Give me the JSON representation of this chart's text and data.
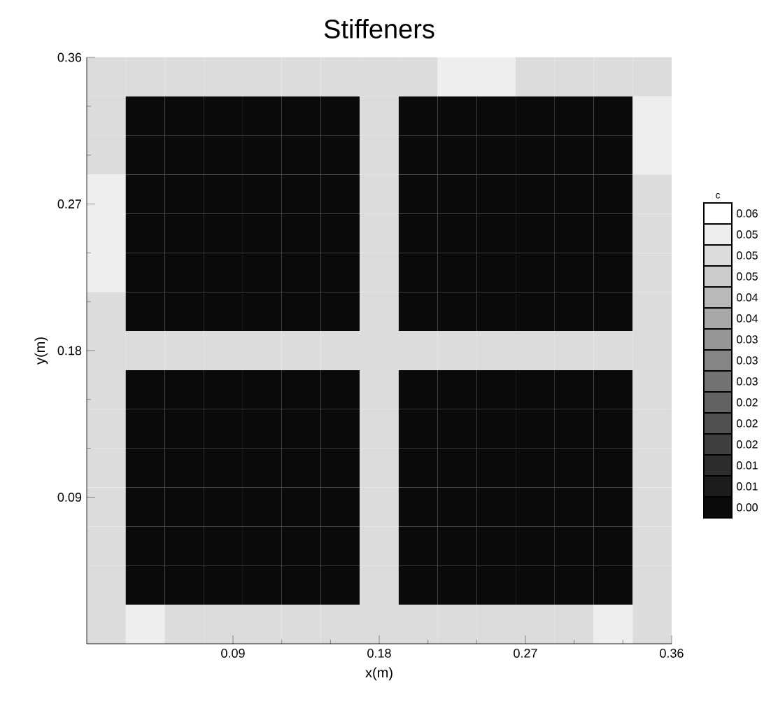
{
  "chart_data": {
    "type": "heatmap",
    "title": "Stiffeners",
    "xlabel": "x(m)",
    "ylabel": "y(m)",
    "clabel": "c",
    "xlim": [
      0,
      0.36
    ],
    "ylim": [
      0,
      0.36
    ],
    "xticks": [
      0.09,
      0.18,
      0.27,
      0.36
    ],
    "yticks": [
      0.09,
      0.18,
      0.27,
      0.36
    ],
    "clim": [
      0.0027,
      0.0582
    ],
    "cticks": [
      {
        "value": 0.0045,
        "label": "0.00"
      },
      {
        "value": 0.0082,
        "label": "0.01"
      },
      {
        "value": 0.0119,
        "label": "0.01"
      },
      {
        "value": 0.0156,
        "label": "0.02"
      },
      {
        "value": 0.0193,
        "label": "0.02"
      },
      {
        "value": 0.023,
        "label": "0.02"
      },
      {
        "value": 0.0267,
        "label": "0.03"
      },
      {
        "value": 0.0304,
        "label": "0.03"
      },
      {
        "value": 0.0341,
        "label": "0.03"
      },
      {
        "value": 0.0378,
        "label": "0.04"
      },
      {
        "value": 0.0415,
        "label": "0.04"
      },
      {
        "value": 0.0452,
        "label": "0.05"
      },
      {
        "value": 0.0489,
        "label": "0.05"
      },
      {
        "value": 0.0526,
        "label": "0.05"
      },
      {
        "value": 0.0563,
        "label": "0.06"
      }
    ],
    "cells": [
      [
        0.0489,
        0.0489,
        0.0489,
        0.0489,
        0.0489,
        0.0489,
        0.0489,
        0.0489,
        0.0489,
        0.0526,
        0.0526,
        0.0489,
        0.0489,
        0.0489,
        0.0489
      ],
      [
        0.0489,
        0.0045,
        0.0045,
        0.0045,
        0.0045,
        0.0045,
        0.0045,
        0.0489,
        0.0045,
        0.0045,
        0.0045,
        0.0045,
        0.0045,
        0.0045,
        0.0526
      ],
      [
        0.0489,
        0.0045,
        0.0045,
        0.0045,
        0.0045,
        0.0045,
        0.0045,
        0.0489,
        0.0045,
        0.0045,
        0.0045,
        0.0045,
        0.0045,
        0.0045,
        0.0526
      ],
      [
        0.0526,
        0.0045,
        0.0045,
        0.0045,
        0.0045,
        0.0045,
        0.0045,
        0.0489,
        0.0045,
        0.0045,
        0.0045,
        0.0045,
        0.0045,
        0.0045,
        0.0489
      ],
      [
        0.0526,
        0.0045,
        0.0045,
        0.0045,
        0.0045,
        0.0045,
        0.0045,
        0.0489,
        0.0045,
        0.0045,
        0.0045,
        0.0045,
        0.0045,
        0.0045,
        0.0489
      ],
      [
        0.0526,
        0.0045,
        0.0045,
        0.0045,
        0.0045,
        0.0045,
        0.0045,
        0.0489,
        0.0045,
        0.0045,
        0.0045,
        0.0045,
        0.0045,
        0.0045,
        0.0489
      ],
      [
        0.0489,
        0.0045,
        0.0045,
        0.0045,
        0.0045,
        0.0045,
        0.0045,
        0.0489,
        0.0045,
        0.0045,
        0.0045,
        0.0045,
        0.0045,
        0.0045,
        0.0489
      ],
      [
        0.0489,
        0.0489,
        0.0489,
        0.0489,
        0.0489,
        0.0489,
        0.0489,
        0.0489,
        0.0489,
        0.0489,
        0.0489,
        0.0489,
        0.0489,
        0.0489,
        0.0489
      ],
      [
        0.0489,
        0.0045,
        0.0045,
        0.0045,
        0.0045,
        0.0045,
        0.0045,
        0.0489,
        0.0045,
        0.0045,
        0.0045,
        0.0045,
        0.0045,
        0.0045,
        0.0489
      ],
      [
        0.0489,
        0.0045,
        0.0045,
        0.0045,
        0.0045,
        0.0045,
        0.0045,
        0.0489,
        0.0045,
        0.0045,
        0.0045,
        0.0045,
        0.0045,
        0.0045,
        0.0489
      ],
      [
        0.0489,
        0.0045,
        0.0045,
        0.0045,
        0.0045,
        0.0045,
        0.0045,
        0.0489,
        0.0045,
        0.0045,
        0.0045,
        0.0045,
        0.0045,
        0.0045,
        0.0489
      ],
      [
        0.0489,
        0.0045,
        0.0045,
        0.0045,
        0.0045,
        0.0045,
        0.0045,
        0.0489,
        0.0045,
        0.0045,
        0.0045,
        0.0045,
        0.0045,
        0.0045,
        0.0489
      ],
      [
        0.0489,
        0.0045,
        0.0045,
        0.0045,
        0.0045,
        0.0045,
        0.0045,
        0.0489,
        0.0045,
        0.0045,
        0.0045,
        0.0045,
        0.0045,
        0.0045,
        0.0489
      ],
      [
        0.0489,
        0.0045,
        0.0045,
        0.0045,
        0.0045,
        0.0045,
        0.0045,
        0.0489,
        0.0045,
        0.0045,
        0.0045,
        0.0045,
        0.0045,
        0.0045,
        0.0489
      ],
      [
        0.0489,
        0.0526,
        0.0489,
        0.0489,
        0.0489,
        0.0489,
        0.0489,
        0.0489,
        0.0489,
        0.0489,
        0.0489,
        0.0489,
        0.0489,
        0.0526,
        0.0489
      ]
    ]
  }
}
